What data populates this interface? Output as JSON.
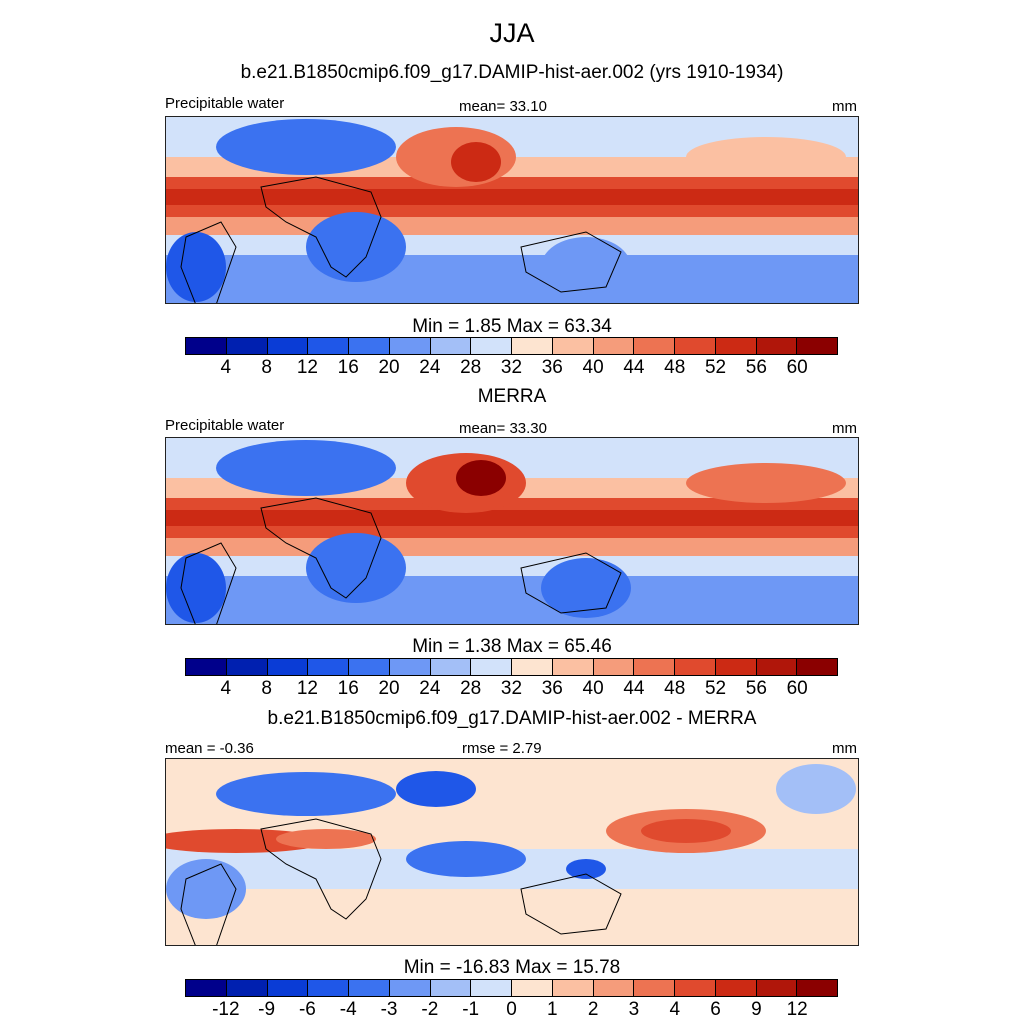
{
  "figure": {
    "season": "JJA"
  },
  "panels": [
    {
      "title": "b.e21.B1850cmip6.f09_g17.DAMIP-hist-aer.002 (yrs 1910-1934)",
      "left_label": "Precipitable water",
      "center_label": "mean=  33.10",
      "right_label": "mm",
      "minmax": "Min =   1.85 Max =  63.34"
    },
    {
      "title": "MERRA",
      "left_label": "Precipitable water",
      "center_label": "mean=  33.30",
      "right_label": "mm",
      "minmax": "Min =   1.38 Max =  65.46"
    },
    {
      "title": "b.e21.B1850cmip6.f09_g17.DAMIP-hist-aer.002 - MERRA",
      "left_label": "mean =  -0.36",
      "center_label": "rmse =   2.79",
      "right_label": "mm",
      "minmax": "Min = -16.83 Max =  15.78"
    }
  ],
  "colorbars": {
    "absolute": {
      "colors": [
        "#00008b",
        "#0020b0",
        "#0a3cd6",
        "#1f57e8",
        "#3b72f0",
        "#6e98f5",
        "#a3bff7",
        "#d2e2fa",
        "#fde4d0",
        "#fbc0a2",
        "#f59c7b",
        "#ed7352",
        "#e04a2e",
        "#cc2a14",
        "#b0160a",
        "#8b0000"
      ],
      "ticks": [
        "4",
        "8",
        "12",
        "16",
        "20",
        "24",
        "28",
        "32",
        "36",
        "40",
        "44",
        "48",
        "52",
        "56",
        "60"
      ]
    },
    "difference": {
      "colors": [
        "#00008b",
        "#0020b0",
        "#0a3cd6",
        "#1f57e8",
        "#3b72f0",
        "#6e98f5",
        "#a3bff7",
        "#d2e2fa",
        "#fde4d0",
        "#fbc0a2",
        "#f59c7b",
        "#ed7352",
        "#e04a2e",
        "#cc2a14",
        "#b0160a",
        "#8b0000"
      ],
      "ticks": [
        "-12",
        "-9",
        "-6",
        "-4",
        "-3",
        "-2",
        "-1",
        "0",
        "1",
        "2",
        "3",
        "4",
        "6",
        "9",
        "12"
      ]
    }
  },
  "chart_data": [
    {
      "type": "heatmap",
      "title": "b.e21.B1850cmip6.f09_g17.DAMIP-hist-aer.002 (yrs 1910-1934)",
      "variable": "Precipitable water",
      "units": "mm",
      "mean": 33.1,
      "min": 1.85,
      "max": 63.34,
      "contour_levels": [
        4,
        8,
        12,
        16,
        20,
        24,
        28,
        32,
        36,
        40,
        44,
        48,
        52,
        56,
        60
      ]
    },
    {
      "type": "heatmap",
      "title": "MERRA",
      "variable": "Precipitable water",
      "units": "mm",
      "mean": 33.3,
      "min": 1.38,
      "max": 65.46,
      "contour_levels": [
        4,
        8,
        12,
        16,
        20,
        24,
        28,
        32,
        36,
        40,
        44,
        48,
        52,
        56,
        60
      ]
    },
    {
      "type": "heatmap",
      "title": "b.e21.B1850cmip6.f09_g17.DAMIP-hist-aer.002 - MERRA",
      "units": "mm",
      "mean": -0.36,
      "rmse": 2.79,
      "min": -16.83,
      "max": 15.78,
      "contour_levels": [
        -12,
        -9,
        -6,
        -4,
        -3,
        -2,
        -1,
        0,
        1,
        2,
        3,
        4,
        6,
        9,
        12
      ]
    }
  ]
}
